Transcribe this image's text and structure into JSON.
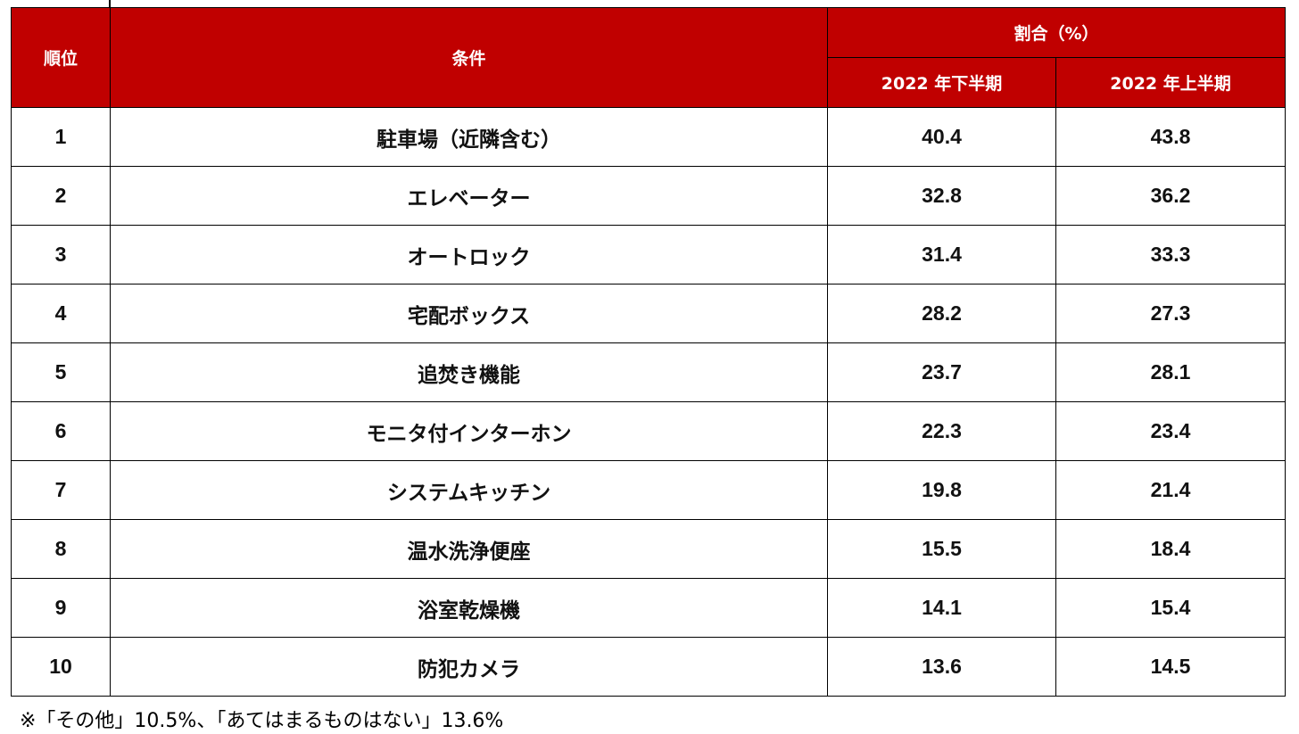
{
  "header": {
    "rank": "順位",
    "condition": "条件",
    "ratio": "割合（%）",
    "period1": "2022 年下半期",
    "period2": "2022 年上半期"
  },
  "rows": [
    {
      "rank": "1",
      "condition": "駐車場（近隣含む）",
      "h2": "40.4",
      "h1": "43.8"
    },
    {
      "rank": "2",
      "condition": "エレベーター",
      "h2": "32.8",
      "h1": "36.2"
    },
    {
      "rank": "3",
      "condition": "オートロック",
      "h2": "31.4",
      "h1": "33.3"
    },
    {
      "rank": "4",
      "condition": "宅配ボックス",
      "h2": "28.2",
      "h1": "27.3"
    },
    {
      "rank": "5",
      "condition": "追焚き機能",
      "h2": "23.7",
      "h1": "28.1"
    },
    {
      "rank": "6",
      "condition": "モニタ付インターホン",
      "h2": "22.3",
      "h1": "23.4"
    },
    {
      "rank": "7",
      "condition": "システムキッチン",
      "h2": "19.8",
      "h1": "21.4"
    },
    {
      "rank": "8",
      "condition": "温水洗浄便座",
      "h2": "15.5",
      "h1": "18.4"
    },
    {
      "rank": "9",
      "condition": "浴室乾燥機",
      "h2": "14.1",
      "h1": "15.4"
    },
    {
      "rank": "10",
      "condition": "防犯カメラ",
      "h2": "13.6",
      "h1": "14.5"
    }
  ],
  "note": "※「その他」10.5%、「あてはまるものはない」13.6%",
  "colors": {
    "header_bg": "#C00000",
    "header_text": "#FFFFFF"
  }
}
